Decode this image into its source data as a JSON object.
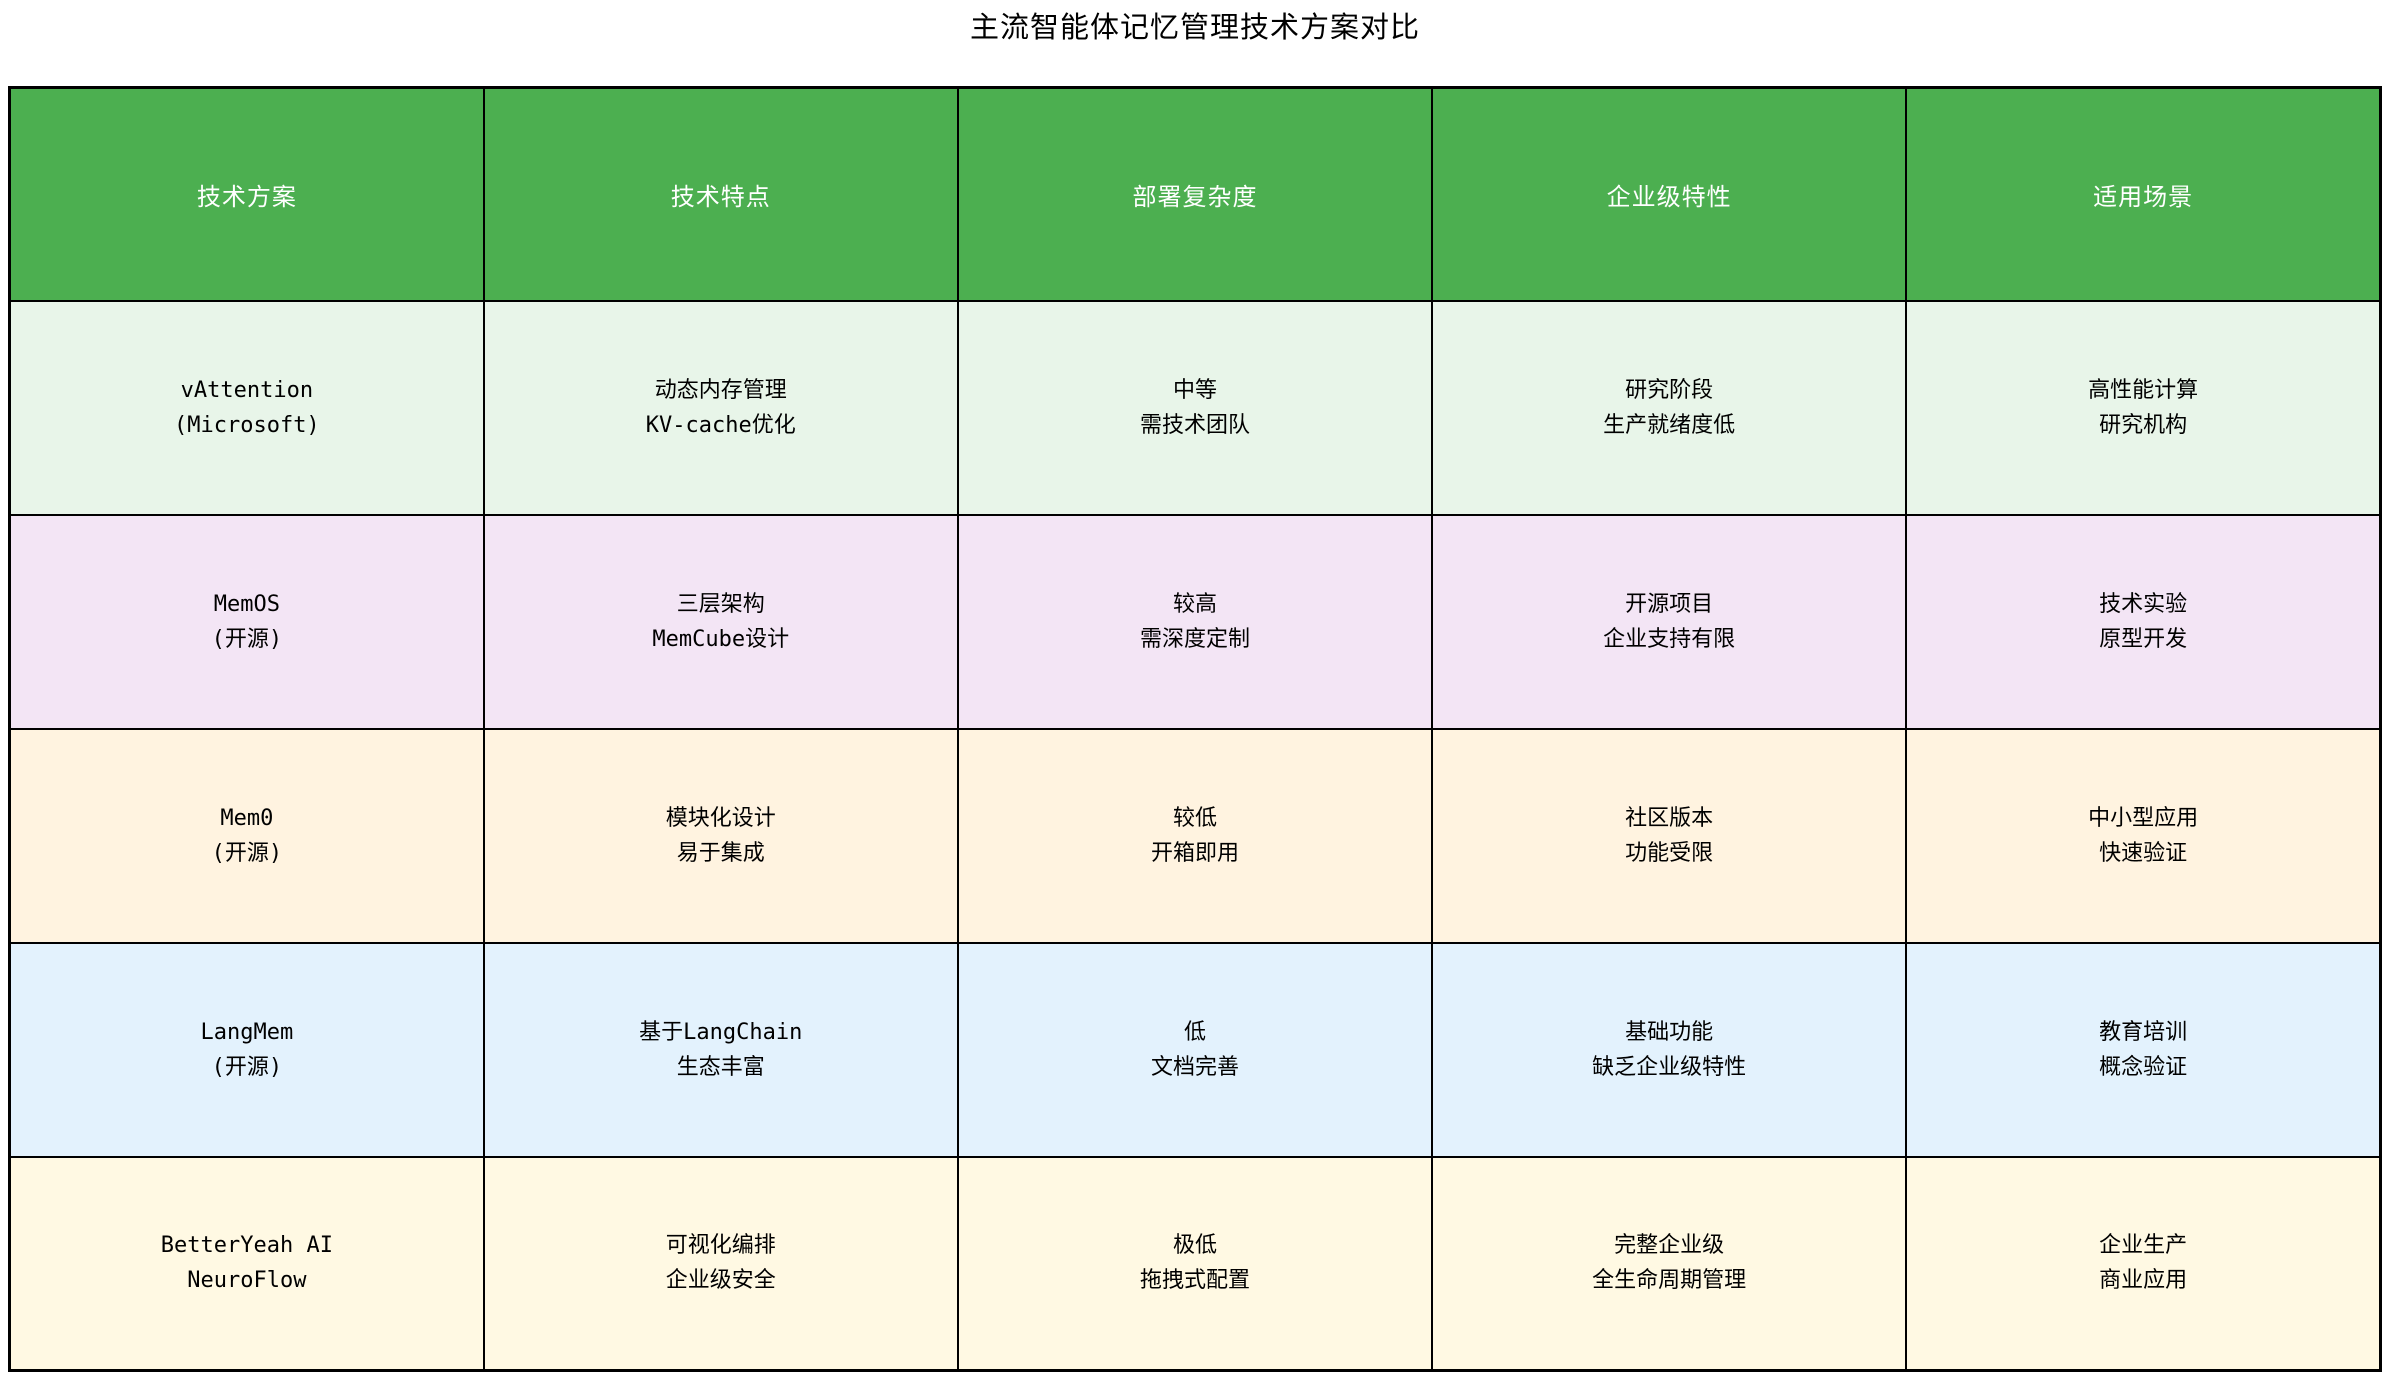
{
  "page": {
    "title": "主流智能体记忆管理技术方案对比"
  },
  "colors": {
    "header_bg": "#4caf50",
    "header_text": "#ffffff",
    "border": "#000000",
    "row_backgrounds": [
      "#e8f5e9",
      "#f3e5f5",
      "#fff3e0",
      "#e3f2fd",
      "#fff9e3"
    ]
  },
  "table": {
    "headers": [
      "技术方案",
      "技术特点",
      "部署复杂度",
      "企业级特性",
      "适用场景"
    ],
    "rows": [
      {
        "bg": "#e8f5e9",
        "cells": [
          "vAttention\n(Microsoft)",
          "动态内存管理\nKV-cache优化",
          "中等\n需技术团队",
          "研究阶段\n生产就绪度低",
          "高性能计算\n研究机构"
        ]
      },
      {
        "bg": "#f3e5f5",
        "cells": [
          "MemOS\n(开源)",
          "三层架构\nMemCube设计",
          "较高\n需深度定制",
          "开源项目\n企业支持有限",
          "技术实验\n原型开发"
        ]
      },
      {
        "bg": "#fff3e0",
        "cells": [
          "Mem0\n(开源)",
          "模块化设计\n易于集成",
          "较低\n开箱即用",
          "社区版本\n功能受限",
          "中小型应用\n快速验证"
        ]
      },
      {
        "bg": "#e3f2fd",
        "cells": [
          "LangMem\n(开源)",
          "基于LangChain\n生态丰富",
          "低\n文档完善",
          "基础功能\n缺乏企业级特性",
          "教育培训\n概念验证"
        ]
      },
      {
        "bg": "#fff9e3",
        "cells": [
          "BetterYeah AI\nNeuroFlow",
          "可视化编排\n企业级安全",
          "极低\n拖拽式配置",
          "完整企业级\n全生命周期管理",
          "企业生产\n商业应用"
        ]
      }
    ]
  },
  "chart_data": {
    "type": "table",
    "title": "主流智能体记忆管理技术方案对比",
    "columns": [
      "技术方案",
      "技术特点",
      "部署复杂度",
      "企业级特性",
      "适用场景"
    ],
    "rows": [
      [
        "vAttention (Microsoft)",
        "动态内存管理 KV-cache优化",
        "中等 需技术团队",
        "研究阶段 生产就绪度低",
        "高性能计算 研究机构"
      ],
      [
        "MemOS (开源)",
        "三层架构 MemCube设计",
        "较高 需深度定制",
        "开源项目 企业支持有限",
        "技术实验 原型开发"
      ],
      [
        "Mem0 (开源)",
        "模块化设计 易于集成",
        "较低 开箱即用",
        "社区版本 功能受限",
        "中小型应用 快速验证"
      ],
      [
        "LangMem (开源)",
        "基于LangChain 生态丰富",
        "低 文档完善",
        "基础功能 缺乏企业级特性",
        "教育培训 概念验证"
      ],
      [
        "BetterYeah AI NeuroFlow",
        "可视化编排 企业级安全",
        "极低 拖拽式配置",
        "完整企业级 全生命周期管理",
        "企业生产 商业应用"
      ]
    ],
    "layout": {
      "header_style": "green-filled",
      "row_striping": "per-row pastel colors",
      "grid": true
    }
  }
}
